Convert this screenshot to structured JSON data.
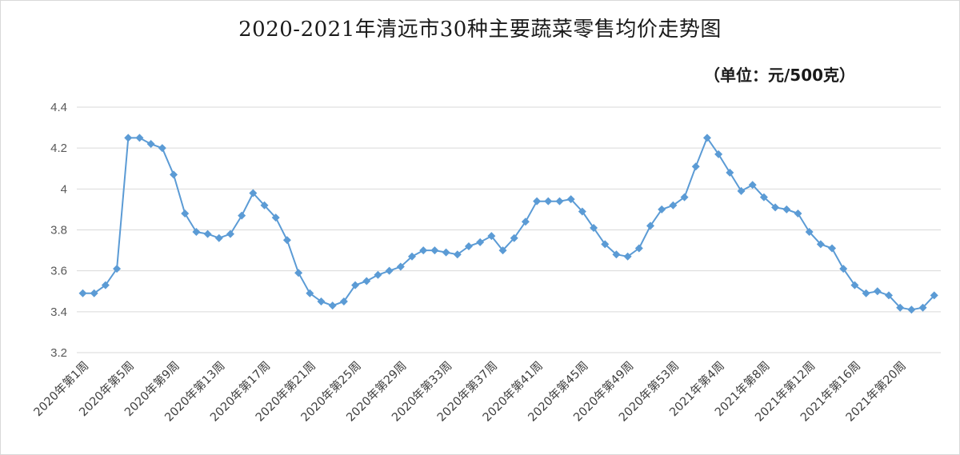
{
  "chart_data": {
    "type": "line",
    "title": "2020-2021年清远市30种主要蔬菜零售均价走势图",
    "unit_note": "（单位：元/500克）",
    "xlabel": "",
    "ylabel": "",
    "ylim": [
      3.2,
      4.4
    ],
    "yticks": [
      "3.2",
      "3.4",
      "3.6",
      "3.8",
      "4",
      "4.2",
      "4.4"
    ],
    "grid": true,
    "legend": "none",
    "x_tick_labels": [
      "2020年第1周",
      "2020年第5周",
      "2020年第9周",
      "2020年第13周",
      "2020年第17周",
      "2020年第21周",
      "2020年第25周",
      "2020年第29周",
      "2020年第33周",
      "2020年第37周",
      "2020年第41周",
      "2020年第45周",
      "2020年第49周",
      "2020年第53周",
      "2021年第4周",
      "2021年第8周",
      "2021年第12周",
      "2021年第16周",
      "2021年第20周"
    ],
    "series": [
      {
        "color": "#5b9bd5",
        "values": [
          3.49,
          3.49,
          3.53,
          3.61,
          4.25,
          4.25,
          4.22,
          4.2,
          4.07,
          3.88,
          3.79,
          3.78,
          3.76,
          3.78,
          3.87,
          3.98,
          3.92,
          3.86,
          3.75,
          3.59,
          3.49,
          3.45,
          3.43,
          3.45,
          3.53,
          3.55,
          3.58,
          3.6,
          3.62,
          3.67,
          3.7,
          3.7,
          3.69,
          3.68,
          3.72,
          3.74,
          3.77,
          3.7,
          3.76,
          3.84,
          3.94,
          3.94,
          3.94,
          3.95,
          3.89,
          3.81,
          3.73,
          3.68,
          3.67,
          3.71,
          3.82,
          3.9,
          3.92,
          3.96,
          4.11,
          4.25,
          4.17,
          4.08,
          3.99,
          4.02,
          3.96,
          3.91,
          3.9,
          3.88,
          3.79,
          3.73,
          3.71,
          3.61,
          3.53,
          3.49,
          3.5,
          3.48,
          3.42,
          3.41,
          3.42,
          3.48
        ]
      }
    ]
  }
}
